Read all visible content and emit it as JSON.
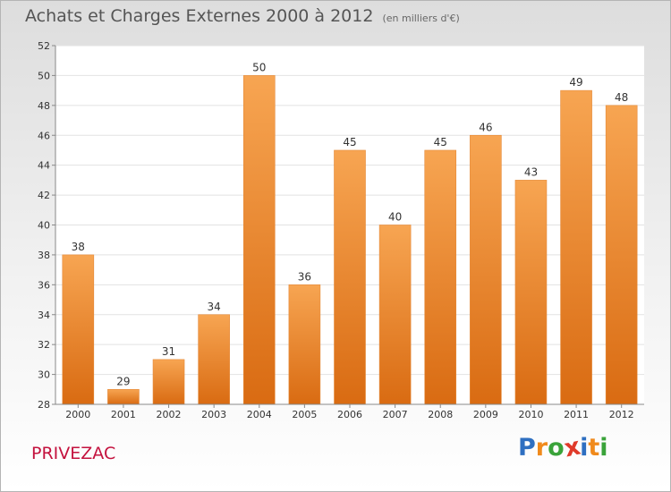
{
  "header": {
    "title": "Achats et Charges Externes 2000 à 2012",
    "unit": "(en milliers d'€)"
  },
  "town": "PRIVEZAC",
  "logo": {
    "letters": [
      "P",
      "r",
      "o",
      "x",
      "i",
      "t",
      "i"
    ],
    "colors": [
      "#2e6fc1",
      "#f08a1c",
      "#3aa33a",
      "#e03a2a",
      "#2e6fc1",
      "#f08a1c",
      "#3aa33a"
    ]
  },
  "chart_data": {
    "type": "bar",
    "title": "Achats et Charges Externes 2000 à 2012",
    "subtitle": "(en milliers d'€)",
    "categories": [
      "2000",
      "2001",
      "2002",
      "2003",
      "2004",
      "2005",
      "2006",
      "2007",
      "2008",
      "2009",
      "2010",
      "2011",
      "2012"
    ],
    "values": [
      38,
      29,
      31,
      34,
      50,
      36,
      45,
      40,
      45,
      46,
      43,
      49,
      48
    ],
    "ylim": [
      28,
      52
    ],
    "yticks": [
      28,
      30,
      32,
      34,
      36,
      38,
      40,
      42,
      44,
      46,
      48,
      50,
      52
    ],
    "grid": true,
    "bar_color": "#f08a30",
    "legend": "none"
  }
}
